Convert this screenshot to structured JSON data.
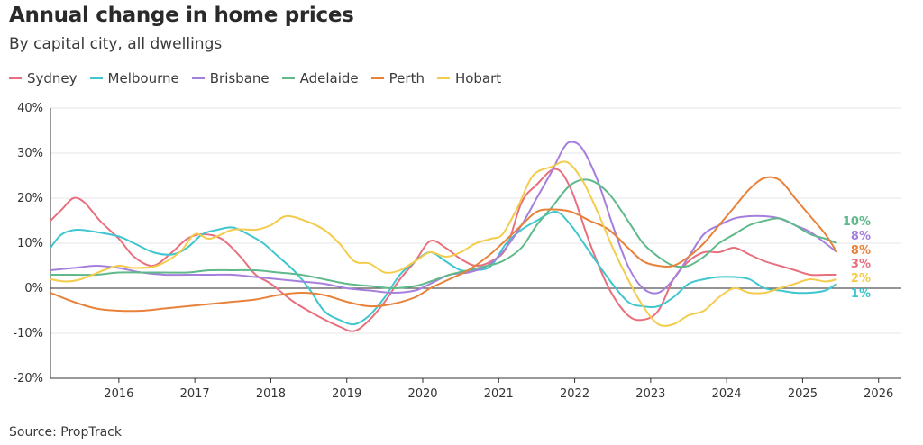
{
  "header": {
    "title": "Annual change in home prices",
    "subtitle": "By capital city, all dwellings"
  },
  "footer": {
    "source": "Source: PropTrack"
  },
  "chart_data": {
    "type": "line",
    "title": "Annual change in home prices",
    "subtitle": "By capital city, all dwellings",
    "xlabel": "",
    "ylabel": "",
    "xlim": [
      2015.1,
      2026.3
    ],
    "ylim": [
      -20,
      40
    ],
    "x_ticks": [
      "2016",
      "2017",
      "2018",
      "2019",
      "2020",
      "2021",
      "2022",
      "2023",
      "2024",
      "2025",
      "2026"
    ],
    "y_ticks": [
      "40%",
      "30%",
      "20%",
      "10%",
      "0%",
      "-10%",
      "-20%"
    ],
    "grid": "horizontal",
    "legend": "top-left",
    "series": [
      {
        "name": "Sydney",
        "color": "#e8707e",
        "end_label": "3%",
        "x": [
          2015.1,
          2015.25,
          2015.4,
          2015.55,
          2015.75,
          2016.0,
          2016.2,
          2016.45,
          2016.7,
          2016.9,
          2017.1,
          2017.35,
          2017.6,
          2017.8,
          2018.0,
          2018.3,
          2018.6,
          2018.9,
          2019.1,
          2019.3,
          2019.5,
          2019.7,
          2019.9,
          2020.1,
          2020.3,
          2020.5,
          2020.7,
          2020.9,
          2021.1,
          2021.3,
          2021.5,
          2021.75,
          2021.95,
          2022.2,
          2022.45,
          2022.7,
          2022.9,
          2023.1,
          2023.3,
          2023.5,
          2023.7,
          2023.9,
          2024.1,
          2024.3,
          2024.5,
          2024.7,
          2024.9,
          2025.1,
          2025.3,
          2025.45
        ],
        "y": [
          15,
          17.5,
          20,
          19,
          15,
          11,
          7,
          5,
          8,
          11,
          12,
          11,
          7,
          3,
          1,
          -3,
          -6,
          -8.5,
          -9.5,
          -7,
          -3,
          2,
          6,
          10.5,
          9,
          6.5,
          5,
          6,
          9,
          19,
          23,
          26.5,
          22,
          10,
          0,
          -6,
          -7,
          -5,
          2,
          6,
          8,
          8,
          9,
          7.5,
          6,
          5,
          4,
          3,
          3,
          3
        ]
      },
      {
        "name": "Melbourne",
        "color": "#3fc6cf",
        "end_label": "1%",
        "x": [
          2015.1,
          2015.25,
          2015.45,
          2015.7,
          2016.0,
          2016.2,
          2016.45,
          2016.7,
          2016.9,
          2017.1,
          2017.3,
          2017.5,
          2017.7,
          2017.9,
          2018.1,
          2018.3,
          2018.5,
          2018.7,
          2018.9,
          2019.1,
          2019.3,
          2019.5,
          2019.7,
          2019.9,
          2020.1,
          2020.3,
          2020.5,
          2020.7,
          2020.9,
          2021.1,
          2021.3,
          2021.5,
          2021.75,
          2021.95,
          2022.2,
          2022.45,
          2022.7,
          2022.9,
          2023.1,
          2023.3,
          2023.5,
          2023.7,
          2023.9,
          2024.1,
          2024.3,
          2024.5,
          2024.7,
          2024.9,
          2025.1,
          2025.3,
          2025.45
        ],
        "y": [
          9,
          12,
          13,
          12.5,
          11.5,
          10,
          8,
          7.5,
          9,
          12,
          13,
          13.5,
          12,
          10,
          7,
          4,
          0,
          -5,
          -7,
          -8,
          -6,
          -2,
          3,
          6,
          8,
          6,
          4,
          4,
          5,
          10,
          13,
          15,
          17,
          14,
          8,
          2,
          -3,
          -4,
          -4,
          -2,
          1,
          2,
          2.5,
          2.5,
          2,
          0,
          -0.5,
          -1,
          -1,
          -0.5,
          1
        ]
      },
      {
        "name": "Brisbane",
        "color": "#a57fdc",
        "end_label": "8%",
        "x": [
          2015.1,
          2015.4,
          2015.7,
          2016.0,
          2016.3,
          2016.6,
          2016.9,
          2017.2,
          2017.5,
          2017.8,
          2018.1,
          2018.4,
          2018.7,
          2019.0,
          2019.3,
          2019.6,
          2019.9,
          2020.1,
          2020.35,
          2020.6,
          2020.85,
          2021.05,
          2021.3,
          2021.5,
          2021.7,
          2021.85,
          2021.95,
          2022.1,
          2022.3,
          2022.5,
          2022.7,
          2022.9,
          2023.1,
          2023.3,
          2023.5,
          2023.7,
          2023.9,
          2024.1,
          2024.3,
          2024.5,
          2024.7,
          2024.9,
          2025.1,
          2025.3,
          2025.45
        ],
        "y": [
          4,
          4.5,
          5,
          4.5,
          3.5,
          3,
          3,
          3,
          3,
          2.5,
          2,
          1.5,
          1,
          0,
          -0.5,
          -1,
          -0.5,
          1,
          3,
          3.5,
          5,
          8,
          14,
          20,
          26,
          31,
          32.5,
          31,
          24,
          14,
          5,
          0,
          -1,
          2,
          7,
          12,
          14,
          15.5,
          16,
          16,
          15.5,
          14,
          12.5,
          10,
          8
        ]
      },
      {
        "name": "Adelaide",
        "color": "#5fb98a",
        "end_label": "10%",
        "x": [
          2015.1,
          2015.4,
          2015.7,
          2016.0,
          2016.3,
          2016.6,
          2016.9,
          2017.2,
          2017.5,
          2017.8,
          2018.1,
          2018.4,
          2018.7,
          2019.0,
          2019.3,
          2019.6,
          2019.9,
          2020.1,
          2020.35,
          2020.6,
          2020.85,
          2021.05,
          2021.3,
          2021.5,
          2021.7,
          2021.95,
          2022.2,
          2022.45,
          2022.7,
          2022.9,
          2023.1,
          2023.3,
          2023.5,
          2023.7,
          2023.9,
          2024.1,
          2024.3,
          2024.5,
          2024.7,
          2024.9,
          2025.1,
          2025.3,
          2025.45
        ],
        "y": [
          3,
          3,
          3,
          3.5,
          3.5,
          3.5,
          3.5,
          4,
          4,
          4,
          3.5,
          3,
          2,
          1,
          0.5,
          0,
          0.5,
          1.5,
          3,
          4,
          5,
          6,
          9,
          14,
          18,
          23,
          24,
          21,
          15,
          10,
          7,
          5,
          5,
          7,
          10,
          12,
          14,
          15,
          15.5,
          14,
          12,
          11,
          10
        ]
      },
      {
        "name": "Perth",
        "color": "#e8823a",
        "end_label": "8%",
        "x": [
          2015.1,
          2015.4,
          2015.7,
          2016.0,
          2016.3,
          2016.6,
          2016.9,
          2017.2,
          2017.5,
          2017.8,
          2018.1,
          2018.4,
          2018.7,
          2019.0,
          2019.3,
          2019.6,
          2019.9,
          2020.1,
          2020.35,
          2020.6,
          2020.85,
          2021.05,
          2021.3,
          2021.5,
          2021.7,
          2021.95,
          2022.2,
          2022.45,
          2022.7,
          2022.9,
          2023.1,
          2023.3,
          2023.5,
          2023.7,
          2023.9,
          2024.1,
          2024.3,
          2024.5,
          2024.7,
          2024.9,
          2025.1,
          2025.3,
          2025.45
        ],
        "y": [
          -1,
          -3,
          -4.5,
          -5,
          -5,
          -4.5,
          -4,
          -3.5,
          -3,
          -2.5,
          -1.5,
          -1,
          -1.5,
          -3,
          -4,
          -3.5,
          -2,
          0,
          2,
          4,
          7,
          10,
          14,
          17,
          17.5,
          17,
          15,
          13,
          9,
          6,
          5,
          5,
          7,
          10,
          14,
          18,
          22,
          24.5,
          24,
          20,
          16,
          12,
          8
        ]
      },
      {
        "name": "Hobart",
        "color": "#f4cc4c",
        "end_label": "2%",
        "x": [
          2015.1,
          2015.3,
          2015.5,
          2015.8,
          2016.0,
          2016.2,
          2016.5,
          2016.8,
          2017.0,
          2017.2,
          2017.5,
          2017.8,
          2018.0,
          2018.2,
          2018.45,
          2018.7,
          2018.9,
          2019.1,
          2019.3,
          2019.5,
          2019.7,
          2019.9,
          2020.1,
          2020.3,
          2020.5,
          2020.7,
          2020.9,
          2021.05,
          2021.25,
          2021.45,
          2021.7,
          2021.9,
          2022.1,
          2022.3,
          2022.5,
          2022.7,
          2022.9,
          2023.1,
          2023.3,
          2023.5,
          2023.7,
          2023.9,
          2024.1,
          2024.3,
          2024.5,
          2024.7,
          2024.9,
          2025.1,
          2025.3,
          2025.45
        ],
        "y": [
          2,
          1.5,
          2,
          4,
          5,
          4.5,
          5,
          8,
          12,
          11,
          13,
          13,
          14,
          16,
          15,
          13,
          10,
          6,
          5.5,
          3.5,
          4,
          6,
          8,
          7,
          8,
          10,
          11,
          12,
          18,
          25,
          27,
          28,
          24,
          17,
          9,
          2,
          -4,
          -8,
          -8,
          -6,
          -5,
          -2,
          0,
          -1,
          -1,
          0,
          1,
          2,
          1.5,
          2
        ]
      }
    ]
  }
}
